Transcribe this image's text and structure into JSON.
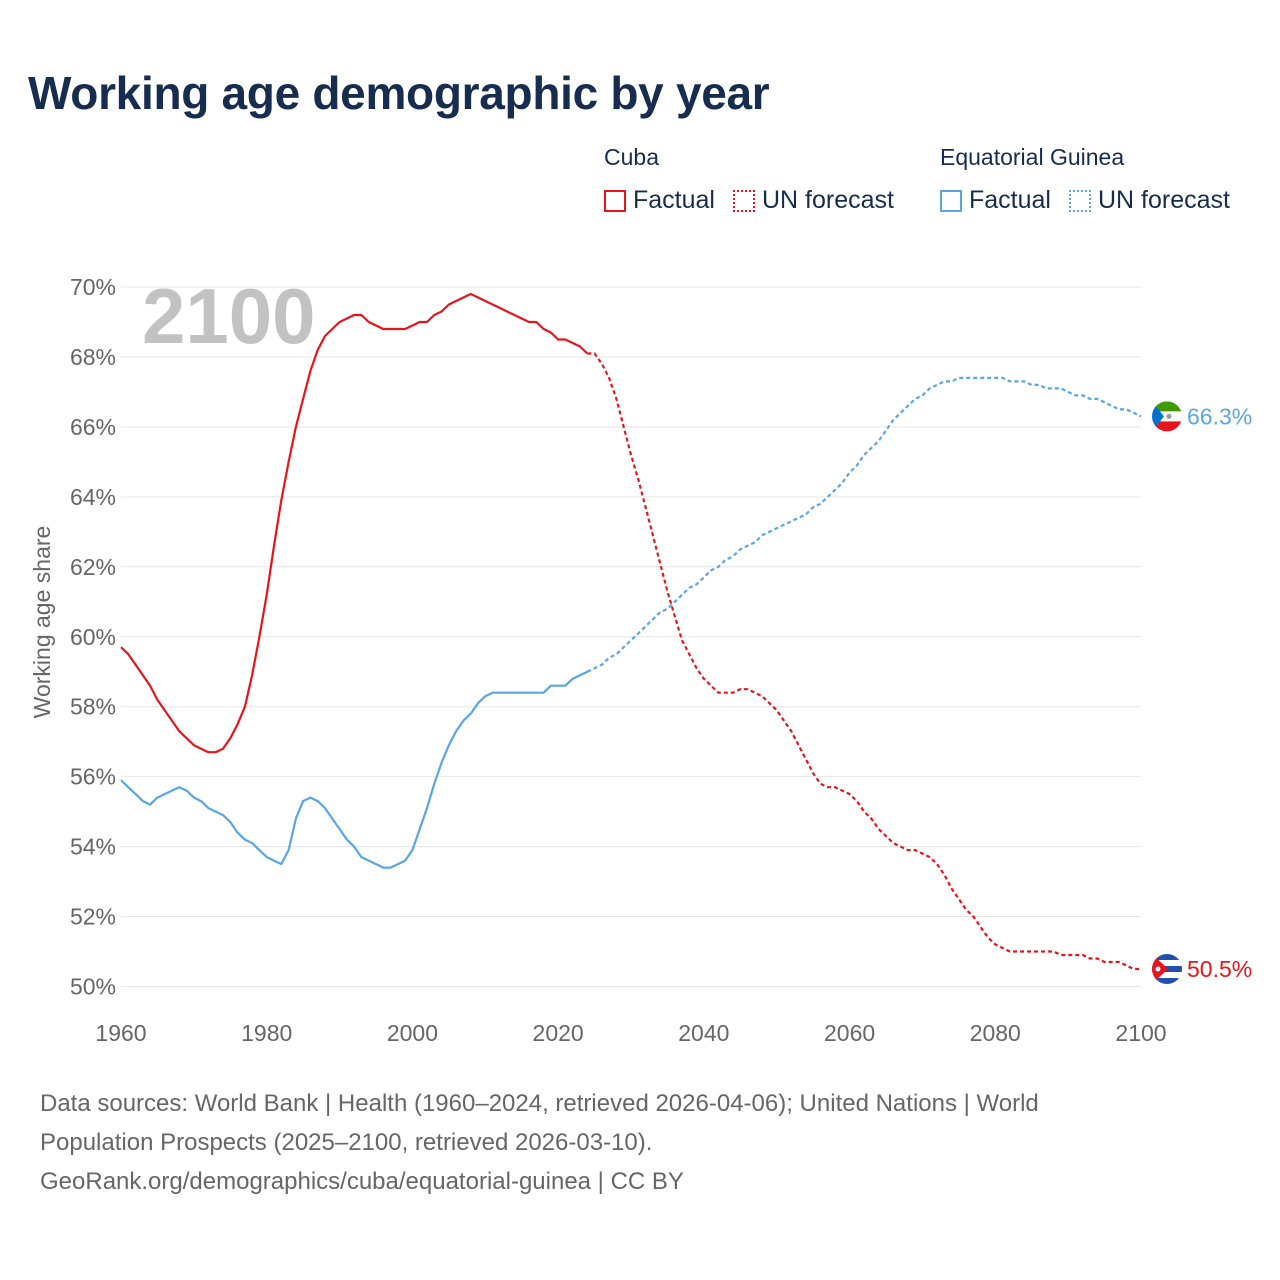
{
  "title": "Working age demographic by year",
  "legend": {
    "groups": [
      {
        "name": "Cuba",
        "color": "#e8141c",
        "items": [
          {
            "label": "Factual",
            "style": "solid"
          },
          {
            "label": "UN forecast",
            "style": "dotted"
          }
        ]
      },
      {
        "name": "Equatorial Guinea",
        "color": "#5aa5e6",
        "items": [
          {
            "label": "Factual",
            "style": "solid"
          },
          {
            "label": "UN forecast",
            "style": "dotted"
          }
        ]
      }
    ]
  },
  "source": {
    "line1": "Data sources: World Bank | Health (1960–2024, retrieved 2026-04-06); United Nations | World",
    "line2": "Population Prospects (2025–2100, retrieved 2026-03-10).",
    "line3": "GeoRank.org/demographics/cuba/equatorial-guinea | CC BY"
  },
  "chart_data": {
    "type": "line",
    "title": "Working age demographic by year",
    "ylabel": "Working age share",
    "xlabel": "",
    "year_watermark": "2100",
    "xlim": [
      1960,
      2100
    ],
    "ylim": [
      49.5,
      70
    ],
    "x_ticks": [
      1960,
      1980,
      2000,
      2020,
      2040,
      2060,
      2080,
      2100
    ],
    "y_ticks": [
      50,
      52,
      54,
      56,
      58,
      60,
      62,
      64,
      66,
      68,
      70
    ],
    "y_tick_labels": [
      "50%",
      "52%",
      "54%",
      "56%",
      "58%",
      "60%",
      "62%",
      "64%",
      "66%",
      "68%",
      "70%"
    ],
    "grid": true,
    "forecast_start": 2024,
    "series": [
      {
        "name": "Cuba",
        "color": "#e8141c",
        "end_label": "50.5%",
        "flag": "cuba",
        "points": [
          [
            1960,
            59.7
          ],
          [
            1961,
            59.5
          ],
          [
            1962,
            59.2
          ],
          [
            1963,
            58.9
          ],
          [
            1964,
            58.6
          ],
          [
            1965,
            58.2
          ],
          [
            1966,
            57.9
          ],
          [
            1967,
            57.6
          ],
          [
            1968,
            57.3
          ],
          [
            1969,
            57.1
          ],
          [
            1970,
            56.9
          ],
          [
            1971,
            56.8
          ],
          [
            1972,
            56.7
          ],
          [
            1973,
            56.7
          ],
          [
            1974,
            56.8
          ],
          [
            1975,
            57.1
          ],
          [
            1976,
            57.5
          ],
          [
            1977,
            58.0
          ],
          [
            1978,
            58.9
          ],
          [
            1979,
            60.0
          ],
          [
            1980,
            61.2
          ],
          [
            1981,
            62.6
          ],
          [
            1982,
            63.9
          ],
          [
            1983,
            65.0
          ],
          [
            1984,
            66.0
          ],
          [
            1985,
            66.8
          ],
          [
            1986,
            67.6
          ],
          [
            1987,
            68.2
          ],
          [
            1988,
            68.6
          ],
          [
            1989,
            68.8
          ],
          [
            1990,
            69.0
          ],
          [
            1991,
            69.1
          ],
          [
            1992,
            69.2
          ],
          [
            1993,
            69.2
          ],
          [
            1994,
            69.0
          ],
          [
            1995,
            68.9
          ],
          [
            1996,
            68.8
          ],
          [
            1997,
            68.8
          ],
          [
            1998,
            68.8
          ],
          [
            1999,
            68.8
          ],
          [
            2000,
            68.9
          ],
          [
            2001,
            69.0
          ],
          [
            2002,
            69.0
          ],
          [
            2003,
            69.2
          ],
          [
            2004,
            69.3
          ],
          [
            2005,
            69.5
          ],
          [
            2006,
            69.6
          ],
          [
            2007,
            69.7
          ],
          [
            2008,
            69.8
          ],
          [
            2009,
            69.7
          ],
          [
            2010,
            69.6
          ],
          [
            2011,
            69.5
          ],
          [
            2012,
            69.4
          ],
          [
            2013,
            69.3
          ],
          [
            2014,
            69.2
          ],
          [
            2015,
            69.1
          ],
          [
            2016,
            69.0
          ],
          [
            2017,
            69.0
          ],
          [
            2018,
            68.8
          ],
          [
            2019,
            68.7
          ],
          [
            2020,
            68.5
          ],
          [
            2021,
            68.5
          ],
          [
            2022,
            68.4
          ],
          [
            2023,
            68.3
          ],
          [
            2024,
            68.1
          ],
          [
            2025,
            68.1
          ],
          [
            2026,
            67.8
          ],
          [
            2027,
            67.4
          ],
          [
            2028,
            66.8
          ],
          [
            2029,
            66.0
          ],
          [
            2030,
            65.2
          ],
          [
            2031,
            64.5
          ],
          [
            2032,
            63.7
          ],
          [
            2033,
            62.9
          ],
          [
            2034,
            62.1
          ],
          [
            2035,
            61.3
          ],
          [
            2036,
            60.6
          ],
          [
            2037,
            59.9
          ],
          [
            2038,
            59.5
          ],
          [
            2039,
            59.1
          ],
          [
            2040,
            58.8
          ],
          [
            2041,
            58.6
          ],
          [
            2042,
            58.4
          ],
          [
            2043,
            58.4
          ],
          [
            2044,
            58.4
          ],
          [
            2045,
            58.5
          ],
          [
            2046,
            58.5
          ],
          [
            2047,
            58.4
          ],
          [
            2048,
            58.3
          ],
          [
            2049,
            58.1
          ],
          [
            2050,
            57.9
          ],
          [
            2051,
            57.6
          ],
          [
            2052,
            57.3
          ],
          [
            2053,
            56.9
          ],
          [
            2054,
            56.5
          ],
          [
            2055,
            56.1
          ],
          [
            2056,
            55.8
          ],
          [
            2057,
            55.7
          ],
          [
            2058,
            55.7
          ],
          [
            2059,
            55.6
          ],
          [
            2060,
            55.5
          ],
          [
            2061,
            55.3
          ],
          [
            2062,
            55.0
          ],
          [
            2063,
            54.8
          ],
          [
            2064,
            54.5
          ],
          [
            2065,
            54.3
          ],
          [
            2066,
            54.1
          ],
          [
            2067,
            54.0
          ],
          [
            2068,
            53.9
          ],
          [
            2069,
            53.9
          ],
          [
            2070,
            53.8
          ],
          [
            2071,
            53.7
          ],
          [
            2072,
            53.5
          ],
          [
            2073,
            53.2
          ],
          [
            2074,
            52.8
          ],
          [
            2075,
            52.5
          ],
          [
            2076,
            52.2
          ],
          [
            2077,
            52.0
          ],
          [
            2078,
            51.7
          ],
          [
            2079,
            51.4
          ],
          [
            2080,
            51.2
          ],
          [
            2081,
            51.1
          ],
          [
            2082,
            51.0
          ],
          [
            2083,
            51.0
          ],
          [
            2084,
            51.0
          ],
          [
            2085,
            51.0
          ],
          [
            2086,
            51.0
          ],
          [
            2087,
            51.0
          ],
          [
            2088,
            51.0
          ],
          [
            2089,
            50.9
          ],
          [
            2090,
            50.9
          ],
          [
            2091,
            50.9
          ],
          [
            2092,
            50.9
          ],
          [
            2093,
            50.8
          ],
          [
            2094,
            50.8
          ],
          [
            2095,
            50.7
          ],
          [
            2096,
            50.7
          ],
          [
            2097,
            50.7
          ],
          [
            2098,
            50.6
          ],
          [
            2099,
            50.5
          ],
          [
            2100,
            50.5
          ]
        ]
      },
      {
        "name": "Equatorial Guinea",
        "color": "#5aa5e6",
        "end_label": "66.3%",
        "flag": "equatorial-guinea",
        "points": [
          [
            1960,
            55.9
          ],
          [
            1961,
            55.7
          ],
          [
            1962,
            55.5
          ],
          [
            1963,
            55.3
          ],
          [
            1964,
            55.2
          ],
          [
            1965,
            55.4
          ],
          [
            1966,
            55.5
          ],
          [
            1967,
            55.6
          ],
          [
            1968,
            55.7
          ],
          [
            1969,
            55.6
          ],
          [
            1970,
            55.4
          ],
          [
            1971,
            55.3
          ],
          [
            1972,
            55.1
          ],
          [
            1973,
            55.0
          ],
          [
            1974,
            54.9
          ],
          [
            1975,
            54.7
          ],
          [
            1976,
            54.4
          ],
          [
            1977,
            54.2
          ],
          [
            1978,
            54.1
          ],
          [
            1979,
            53.9
          ],
          [
            1980,
            53.7
          ],
          [
            1981,
            53.6
          ],
          [
            1982,
            53.5
          ],
          [
            1983,
            53.9
          ],
          [
            1984,
            54.8
          ],
          [
            1985,
            55.3
          ],
          [
            1986,
            55.4
          ],
          [
            1987,
            55.3
          ],
          [
            1988,
            55.1
          ],
          [
            1989,
            54.8
          ],
          [
            1990,
            54.5
          ],
          [
            1991,
            54.2
          ],
          [
            1992,
            54.0
          ],
          [
            1993,
            53.7
          ],
          [
            1994,
            53.6
          ],
          [
            1995,
            53.5
          ],
          [
            1996,
            53.4
          ],
          [
            1997,
            53.4
          ],
          [
            1998,
            53.5
          ],
          [
            1999,
            53.6
          ],
          [
            2000,
            53.9
          ],
          [
            2001,
            54.5
          ],
          [
            2002,
            55.1
          ],
          [
            2003,
            55.8
          ],
          [
            2004,
            56.4
          ],
          [
            2005,
            56.9
          ],
          [
            2006,
            57.3
          ],
          [
            2007,
            57.6
          ],
          [
            2008,
            57.8
          ],
          [
            2009,
            58.1
          ],
          [
            2010,
            58.3
          ],
          [
            2011,
            58.4
          ],
          [
            2012,
            58.4
          ],
          [
            2013,
            58.4
          ],
          [
            2014,
            58.4
          ],
          [
            2015,
            58.4
          ],
          [
            2016,
            58.4
          ],
          [
            2017,
            58.4
          ],
          [
            2018,
            58.4
          ],
          [
            2019,
            58.6
          ],
          [
            2020,
            58.6
          ],
          [
            2021,
            58.6
          ],
          [
            2022,
            58.8
          ],
          [
            2023,
            58.9
          ],
          [
            2024,
            59.0
          ],
          [
            2025,
            59.1
          ],
          [
            2026,
            59.2
          ],
          [
            2027,
            59.4
          ],
          [
            2028,
            59.5
          ],
          [
            2029,
            59.7
          ],
          [
            2030,
            59.9
          ],
          [
            2031,
            60.1
          ],
          [
            2032,
            60.3
          ],
          [
            2033,
            60.5
          ],
          [
            2034,
            60.7
          ],
          [
            2035,
            60.8
          ],
          [
            2036,
            61.0
          ],
          [
            2037,
            61.2
          ],
          [
            2038,
            61.4
          ],
          [
            2039,
            61.5
          ],
          [
            2040,
            61.7
          ],
          [
            2041,
            61.9
          ],
          [
            2042,
            62.0
          ],
          [
            2043,
            62.2
          ],
          [
            2044,
            62.3
          ],
          [
            2045,
            62.5
          ],
          [
            2046,
            62.6
          ],
          [
            2047,
            62.7
          ],
          [
            2048,
            62.9
          ],
          [
            2049,
            63.0
          ],
          [
            2050,
            63.1
          ],
          [
            2051,
            63.2
          ],
          [
            2052,
            63.3
          ],
          [
            2053,
            63.4
          ],
          [
            2054,
            63.5
          ],
          [
            2055,
            63.7
          ],
          [
            2056,
            63.8
          ],
          [
            2057,
            64.0
          ],
          [
            2058,
            64.2
          ],
          [
            2059,
            64.4
          ],
          [
            2060,
            64.7
          ],
          [
            2061,
            64.9
          ],
          [
            2062,
            65.2
          ],
          [
            2063,
            65.4
          ],
          [
            2064,
            65.6
          ],
          [
            2065,
            65.9
          ],
          [
            2066,
            66.2
          ],
          [
            2067,
            66.4
          ],
          [
            2068,
            66.6
          ],
          [
            2069,
            66.8
          ],
          [
            2070,
            66.9
          ],
          [
            2071,
            67.1
          ],
          [
            2072,
            67.2
          ],
          [
            2073,
            67.3
          ],
          [
            2074,
            67.3
          ],
          [
            2075,
            67.4
          ],
          [
            2076,
            67.4
          ],
          [
            2077,
            67.4
          ],
          [
            2078,
            67.4
          ],
          [
            2079,
            67.4
          ],
          [
            2080,
            67.4
          ],
          [
            2081,
            67.4
          ],
          [
            2082,
            67.3
          ],
          [
            2083,
            67.3
          ],
          [
            2084,
            67.3
          ],
          [
            2085,
            67.2
          ],
          [
            2086,
            67.2
          ],
          [
            2087,
            67.1
          ],
          [
            2088,
            67.1
          ],
          [
            2089,
            67.1
          ],
          [
            2090,
            67.0
          ],
          [
            2091,
            66.9
          ],
          [
            2092,
            66.9
          ],
          [
            2093,
            66.8
          ],
          [
            2094,
            66.8
          ],
          [
            2095,
            66.7
          ],
          [
            2096,
            66.6
          ],
          [
            2097,
            66.5
          ],
          [
            2098,
            66.5
          ],
          [
            2099,
            66.4
          ],
          [
            2100,
            66.3
          ]
        ]
      }
    ]
  }
}
